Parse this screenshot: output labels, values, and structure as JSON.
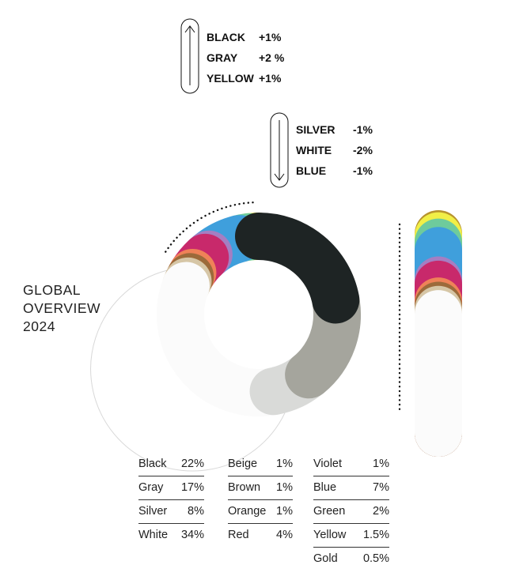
{
  "title_lines": [
    "GLOBAL",
    "OVERVIEW",
    "2024"
  ],
  "changes_up": [
    {
      "name": "BLACK",
      "change": "+1%"
    },
    {
      "name": "GRAY",
      "change": "+2 %"
    },
    {
      "name": "YELLOW",
      "change": "+1%"
    }
  ],
  "changes_down": [
    {
      "name": "SILVER",
      "change": "-1%"
    },
    {
      "name": "WHITE",
      "change": "-2%"
    },
    {
      "name": "BLUE",
      "change": "-1%"
    }
  ],
  "legend_columns": [
    [
      {
        "name": "Black",
        "percent": "22%"
      },
      {
        "name": "Gray",
        "percent": "17%"
      },
      {
        "name": "Silver",
        "percent": "8%"
      },
      {
        "name": "White",
        "percent": "34%"
      }
    ],
    [
      {
        "name": "Beige",
        "percent": "1%"
      },
      {
        "name": "Brown",
        "percent": "1%"
      },
      {
        "name": "Orange",
        "percent": "1%"
      },
      {
        "name": "Red",
        "percent": "4%"
      }
    ],
    [
      {
        "name": "Violet",
        "percent": "1%"
      },
      {
        "name": "Blue",
        "percent": "7%"
      },
      {
        "name": "Green",
        "percent": "2%"
      },
      {
        "name": "Yellow",
        "percent": "1.5%"
      },
      {
        "name": "Gold",
        "percent": "0.5%"
      }
    ]
  ],
  "chart_data": {
    "type": "pie",
    "variant": "donut",
    "title": "GLOBAL OVERVIEW 2024",
    "categories": [
      "Black",
      "Gray",
      "Silver",
      "White",
      "Beige",
      "Brown",
      "Orange",
      "Red",
      "Violet",
      "Blue",
      "Green",
      "Yellow",
      "Gold"
    ],
    "values": [
      22,
      17,
      8,
      34,
      1,
      1,
      1,
      4,
      1,
      7,
      2,
      1.5,
      0.5
    ],
    "unit": "%",
    "colors": {
      "Black": "#1e2424",
      "Gray": "#a5a59d",
      "Silver": "#d9dad8",
      "White": "#fbfbfb",
      "Beige": "#d6c6a6",
      "Brown": "#9c6a3a",
      "Orange": "#ef8258",
      "Red": "#c8296b",
      "Violet": "#a57ec2",
      "Blue": "#3f9fdc",
      "Green": "#6ecb9c",
      "Yellow": "#f1ef47",
      "Gold": "#b8942e"
    },
    "legend_placement": "bottom",
    "grid": false
  }
}
